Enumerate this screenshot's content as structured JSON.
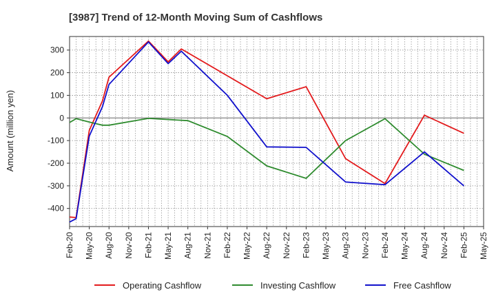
{
  "chart_data": {
    "type": "line",
    "title": "[3987]  Trend of 12-Month Moving Sum of Cashflows",
    "xlabel": "",
    "ylabel": "Amount (million yen)",
    "ylim": [
      -480,
      360
    ],
    "yticks": [
      300,
      200,
      100,
      0,
      -100,
      -200,
      -300,
      -400
    ],
    "xlim": [
      "2020-02",
      "2025-05"
    ],
    "xticks": [
      "Feb-20",
      "May-20",
      "Aug-20",
      "Nov-20",
      "Feb-21",
      "May-21",
      "Aug-21",
      "Nov-21",
      "Feb-22",
      "May-22",
      "Aug-22",
      "Nov-22",
      "Feb-23",
      "May-23",
      "Aug-23",
      "Nov-23",
      "Feb-24",
      "May-24",
      "Aug-24",
      "Nov-24",
      "Feb-25",
      "May-25"
    ],
    "grid": true,
    "legend_position": "bottom",
    "series": [
      {
        "name": "Operating Cashflow",
        "color": "#e31a1c",
        "points": [
          [
            "2020-02",
            -438
          ],
          [
            "2020-03",
            -440
          ],
          [
            "2020-05",
            -55
          ],
          [
            "2020-07",
            75
          ],
          [
            "2020-08",
            180
          ],
          [
            "2021-02",
            340
          ],
          [
            "2021-05",
            248
          ],
          [
            "2021-07",
            305
          ],
          [
            "2022-08",
            85
          ],
          [
            "2023-02",
            138
          ],
          [
            "2023-08",
            -180
          ],
          [
            "2024-02",
            -290
          ],
          [
            "2024-08",
            12
          ],
          [
            "2025-02",
            -68
          ]
        ]
      },
      {
        "name": "Investing Cashflow",
        "color": "#2e8b2e",
        "points": [
          [
            "2020-02",
            -20
          ],
          [
            "2020-03",
            -3
          ],
          [
            "2020-05",
            -18
          ],
          [
            "2020-07",
            -32
          ],
          [
            "2020-08",
            -32
          ],
          [
            "2021-02",
            -2
          ],
          [
            "2021-08",
            -12
          ],
          [
            "2022-02",
            -82
          ],
          [
            "2022-08",
            -212
          ],
          [
            "2023-02",
            -267
          ],
          [
            "2023-08",
            -100
          ],
          [
            "2024-02",
            -3
          ],
          [
            "2024-08",
            -160
          ],
          [
            "2025-02",
            -232
          ]
        ]
      },
      {
        "name": "Free Cashflow",
        "color": "#1010cc",
        "points": [
          [
            "2020-02",
            -460
          ],
          [
            "2020-03",
            -445
          ],
          [
            "2020-05",
            -80
          ],
          [
            "2020-07",
            50
          ],
          [
            "2020-08",
            148
          ],
          [
            "2021-02",
            336
          ],
          [
            "2021-05",
            240
          ],
          [
            "2021-07",
            295
          ],
          [
            "2022-02",
            100
          ],
          [
            "2022-08",
            -128
          ],
          [
            "2023-02",
            -130
          ],
          [
            "2023-08",
            -283
          ],
          [
            "2024-02",
            -295
          ],
          [
            "2024-08",
            -150
          ],
          [
            "2025-02",
            -300
          ]
        ]
      }
    ]
  }
}
